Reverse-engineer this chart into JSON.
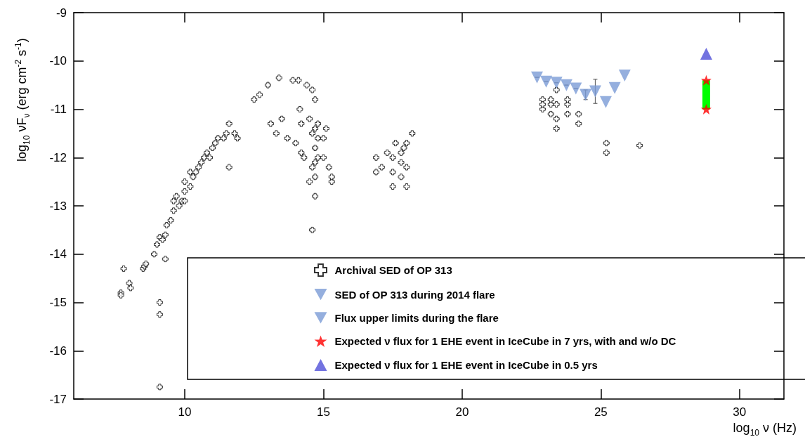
{
  "chart_data": {
    "type": "scatter",
    "xlabel": "log$_{10}$ ν (Hz)",
    "ylabel": "log$_{10}$ νF$_{ν}$ (erg cm$^{-2}$ s$^{-1}$)",
    "xlim": [
      6,
      31.6
    ],
    "xticks": [
      10,
      15,
      20,
      25,
      30
    ],
    "ylim": [
      -17,
      -9
    ],
    "yticks": [
      -17,
      -16,
      -15,
      -14,
      -13,
      -12,
      -11,
      -10,
      -9
    ],
    "grid": false,
    "legend": "bottom right",
    "series": [
      {
        "name": "Archival SED of OP 313",
        "color": "#000000",
        "marker": "cross",
        "x": [
          7.8,
          7.7,
          7.7,
          8.0,
          8.05,
          8.5,
          8.55,
          8.6,
          8.9,
          9.0,
          9.1,
          9.1,
          9.1,
          9.1,
          9.2,
          9.3,
          9.35,
          9.3,
          9.5,
          9.6,
          9.6,
          9.7,
          9.8,
          9.9,
          10.0,
          10.0,
          10.0,
          10.2,
          10.2,
          10.3,
          10.4,
          10.5,
          10.6,
          10.7,
          10.8,
          10.9,
          11.0,
          11.1,
          11.2,
          11.4,
          11.5,
          11.6,
          11.6,
          11.8,
          11.9,
          12.5,
          12.7,
          13.0,
          13.1,
          13.3,
          13.4,
          13.5,
          13.7,
          13.9,
          14.0,
          14.1,
          14.15,
          14.2,
          14.2,
          14.3,
          14.4,
          14.5,
          14.5,
          14.6,
          14.6,
          14.6,
          14.6,
          14.7,
          14.7,
          14.7,
          14.7,
          14.7,
          14.7,
          14.8,
          14.8,
          14.8,
          15.0,
          15.0,
          15.1,
          15.2,
          15.3,
          15.3,
          16.9,
          16.9,
          17.1,
          17.3,
          17.5,
          17.5,
          17.5,
          17.6,
          17.8,
          17.8,
          17.8,
          17.9,
          18.0,
          18.0,
          18.0,
          18.2,
          22.9,
          22.9,
          22.9,
          23.2,
          23.2,
          23.2,
          23.4,
          23.4,
          23.4,
          23.4,
          23.8,
          23.8,
          23.8,
          24.2,
          24.2,
          25.2,
          25.2,
          26.4
        ],
        "values": [
          -14.3,
          -14.8,
          -14.85,
          -14.6,
          -14.7,
          -14.3,
          -14.25,
          -14.2,
          -14.0,
          -13.8,
          -15.0,
          -15.25,
          -16.75,
          -13.65,
          -13.7,
          -13.6,
          -13.4,
          -14.1,
          -13.3,
          -13.1,
          -12.9,
          -12.8,
          -13.0,
          -12.9,
          -12.7,
          -12.5,
          -12.9,
          -12.6,
          -12.3,
          -12.4,
          -12.3,
          -12.2,
          -12.1,
          -12.0,
          -11.9,
          -12.0,
          -11.8,
          -11.7,
          -11.6,
          -11.6,
          -11.5,
          -11.3,
          -12.2,
          -11.5,
          -11.6,
          -10.8,
          -10.7,
          -10.5,
          -11.3,
          -11.5,
          -10.35,
          -11.2,
          -11.6,
          -10.4,
          -11.7,
          -10.4,
          -11.0,
          -11.3,
          -11.9,
          -12.0,
          -10.5,
          -11.2,
          -12.5,
          -10.6,
          -11.5,
          -12.2,
          -13.5,
          -10.8,
          -11.4,
          -11.8,
          -12.1,
          -12.4,
          -12.8,
          -11.3,
          -11.6,
          -12.0,
          -11.6,
          -12.0,
          -11.4,
          -12.2,
          -12.5,
          -12.4,
          -12.0,
          -12.3,
          -12.2,
          -11.9,
          -12.6,
          -12.3,
          -12.0,
          -11.7,
          -11.9,
          -12.4,
          -12.1,
          -11.8,
          -12.6,
          -12.2,
          -11.7,
          -11.5,
          -11.0,
          -10.8,
          -10.9,
          -10.9,
          -11.1,
          -10.8,
          -10.6,
          -10.9,
          -11.2,
          -11.4,
          -10.9,
          -11.1,
          -10.8,
          -11.1,
          -11.3,
          -11.7,
          -11.9,
          -11.75
        ]
      },
      {
        "name": "SED of OP 313 during 2014 flare",
        "color": "#7a9bd6",
        "marker": "triangle-down",
        "x": [
          22.7,
          23.03,
          23.4,
          23.76,
          24.1,
          24.45,
          24.8
        ],
        "values": [
          -10.34,
          -10.43,
          -10.45,
          -10.5,
          -10.57,
          -10.7,
          -10.63
        ],
        "errors": [
          null,
          null,
          null,
          null,
          null,
          0.1,
          0.25
        ]
      },
      {
        "name": "Flux upper limits during the flare",
        "color": "#7a9bd6",
        "marker": "triangle-down",
        "x": [
          25.18,
          25.5,
          25.86
        ],
        "values": [
          -10.85,
          -10.56,
          -10.3
        ]
      },
      {
        "type": "line",
        "color": "#00ff00",
        "marker": "none",
        "x": [
          28.8,
          28.8
        ],
        "values": [
          -10.4,
          -11.0
        ]
      },
      {
        "name": "Expected ν flux for 1 EHE event in IceCube in 7 yrs, with and w/o DC",
        "color": "#ff0000",
        "marker": "star",
        "x": [
          28.8,
          28.8
        ],
        "values": [
          -10.4,
          -11.0
        ]
      },
      {
        "name": "Expected ν flux for 1 EHE event in IceCube in 0.5 yrs",
        "color": "#5050d8",
        "marker": "triangle",
        "x": [
          28.8
        ],
        "values": [
          -9.85
        ]
      }
    ]
  }
}
